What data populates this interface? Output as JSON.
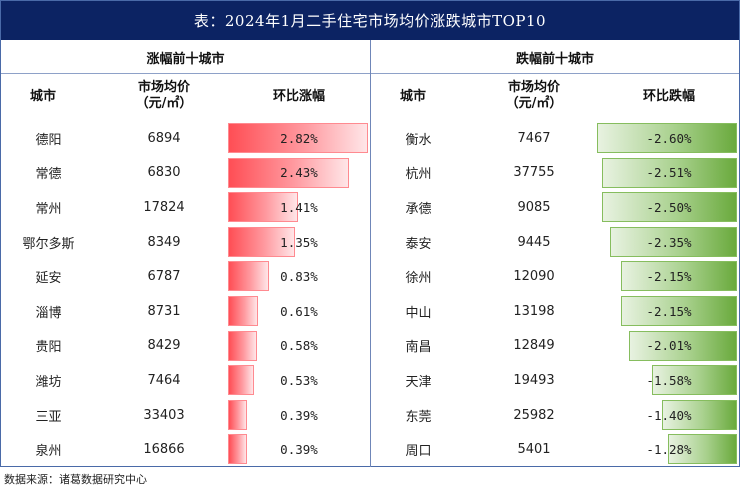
{
  "title": "表：2024年1月二手住宅市场均价涨跌城市TOP10",
  "source": "数据来源：诸葛数据研究中心",
  "colors": {
    "title_bg": "#0c2363",
    "rise_bar": "#ff4e55",
    "fall_bar": "#6aaa3d",
    "border": "#4a6aa8"
  },
  "chart_data": {
    "type": "table",
    "title": "表：2024年1月二手住宅市场均价涨跌城市TOP10",
    "tables": [
      {
        "name": "涨幅前十城市",
        "columns": [
          "城市",
          "市场均价（元/㎡）",
          "环比涨幅"
        ],
        "header_price_line1": "市场均价",
        "header_price_line2": "（元/㎡）",
        "max_abs": 2.82,
        "rows": [
          {
            "city": "德阳",
            "price": 6894,
            "change": 2.82,
            "label": "2.82%"
          },
          {
            "city": "常德",
            "price": 6830,
            "change": 2.43,
            "label": "2.43%"
          },
          {
            "city": "常州",
            "price": 17824,
            "change": 1.41,
            "label": "1.41%"
          },
          {
            "city": "鄂尔多斯",
            "price": 8349,
            "change": 1.35,
            "label": "1.35%"
          },
          {
            "city": "延安",
            "price": 6787,
            "change": 0.83,
            "label": "0.83%"
          },
          {
            "city": "淄博",
            "price": 8731,
            "change": 0.61,
            "label": "0.61%"
          },
          {
            "city": "贵阳",
            "price": 8429,
            "change": 0.58,
            "label": "0.58%"
          },
          {
            "city": "潍坊",
            "price": 7464,
            "change": 0.53,
            "label": "0.53%"
          },
          {
            "city": "三亚",
            "price": 33403,
            "change": 0.39,
            "label": "0.39%"
          },
          {
            "city": "泉州",
            "price": 16866,
            "change": 0.39,
            "label": "0.39%"
          }
        ]
      },
      {
        "name": "跌幅前十城市",
        "columns": [
          "城市",
          "市场均价（元/㎡）",
          "环比跌幅"
        ],
        "header_price_line1": "市场均价",
        "header_price_line2": "（元/㎡）",
        "max_abs": 2.6,
        "rows": [
          {
            "city": "衡水",
            "price": 7467,
            "change": -2.6,
            "label": "-2.60%"
          },
          {
            "city": "杭州",
            "price": 37755,
            "change": -2.51,
            "label": "-2.51%"
          },
          {
            "city": "承德",
            "price": 9085,
            "change": -2.5,
            "label": "-2.50%"
          },
          {
            "city": "泰安",
            "price": 9445,
            "change": -2.35,
            "label": "-2.35%"
          },
          {
            "city": "徐州",
            "price": 12090,
            "change": -2.15,
            "label": "-2.15%"
          },
          {
            "city": "中山",
            "price": 13198,
            "change": -2.15,
            "label": "-2.15%"
          },
          {
            "city": "南昌",
            "price": 12849,
            "change": -2.01,
            "label": "-2.01%"
          },
          {
            "city": "天津",
            "price": 19493,
            "change": -1.58,
            "label": "-1.58%"
          },
          {
            "city": "东莞",
            "price": 25982,
            "change": -1.4,
            "label": "-1.40%"
          },
          {
            "city": "周口",
            "price": 5401,
            "change": -1.28,
            "label": "-1.28%"
          }
        ]
      }
    ]
  }
}
